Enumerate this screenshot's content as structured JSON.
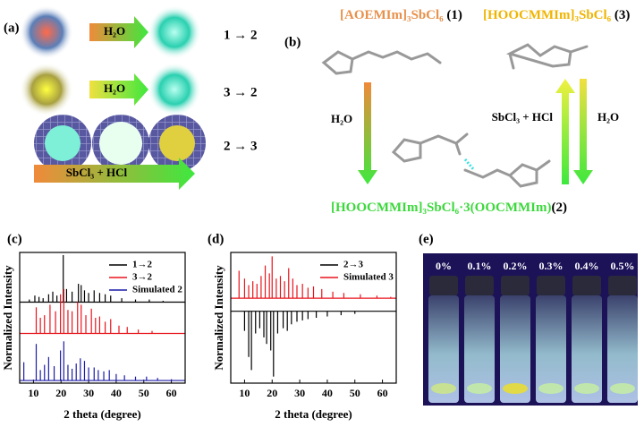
{
  "panel_a": {
    "label": "(a)",
    "rows": [
      {
        "reagent": "H₂O",
        "transition": "1 → 2"
      },
      {
        "reagent": "H₂O",
        "transition": "3 → 2"
      },
      {
        "reagent": "SbCl₃ + HCl",
        "transition": "2 → 3"
      }
    ]
  },
  "panel_b": {
    "label": "(b)",
    "compound_1": {
      "formula": "[AOEMIm]₃SbCl₆",
      "number": " (1)"
    },
    "compound_3": {
      "formula": "[HOOCMMIm]₃SbCl₆",
      "number": " (3)"
    },
    "compound_2": {
      "formula": "[HOOCMMIm]₃SbCl₆·3(OOCMMIm)",
      "number": "(2)"
    },
    "reagent_left": "H₂O",
    "reagent_up": "SbCl₃ + HCl",
    "reagent_down": "H₂O"
  },
  "chart_data": [
    {
      "type": "stick",
      "panel_label": "(c)",
      "xlabel": "2 theta (degree)",
      "ylabel": "Normalized Intensity",
      "xlim": [
        5,
        65
      ],
      "xticks": [
        10,
        20,
        30,
        40,
        50,
        60
      ],
      "ylim": [
        0,
        1
      ],
      "legend": "upper right",
      "series": [
        {
          "name": "1→2",
          "color": "#000000",
          "baseline": 0.62,
          "x": [
            8.5,
            10.5,
            12,
            13.5,
            15.5,
            17,
            18.5,
            20.8,
            22,
            24,
            26.3,
            27.3,
            28.5,
            30,
            32,
            34,
            36,
            38,
            42,
            47,
            52,
            57
          ],
          "values": [
            0.64,
            0.67,
            0.66,
            0.65,
            0.68,
            0.7,
            0.67,
            0.98,
            0.72,
            0.7,
            0.76,
            0.75,
            0.71,
            0.69,
            0.71,
            0.69,
            0.68,
            0.67,
            0.65,
            0.64,
            0.64,
            0.63
          ]
        },
        {
          "name": "3→2",
          "color": "#e8141c",
          "baseline": 0.38,
          "x": [
            11,
            12.5,
            14,
            16,
            18,
            19.8,
            21,
            22.5,
            24,
            26,
            27.3,
            29,
            31,
            32.5,
            34,
            36,
            38,
            41,
            44,
            48,
            53
          ],
          "values": [
            0.58,
            0.5,
            0.52,
            0.6,
            0.55,
            0.68,
            0.72,
            0.56,
            0.55,
            0.62,
            0.6,
            0.52,
            0.57,
            0.5,
            0.51,
            0.47,
            0.49,
            0.44,
            0.43,
            0.41,
            0.4
          ]
        },
        {
          "name": "Simulated 2",
          "color": "#1c1ca8",
          "baseline": 0.02,
          "x": [
            6.5,
            11,
            12.5,
            14,
            15.5,
            17.5,
            19.8,
            21,
            22.5,
            24,
            25.5,
            27,
            28.5,
            30,
            32,
            33.5,
            35.5,
            37.5,
            40,
            43,
            47,
            51,
            55,
            60
          ],
          "values": [
            0.16,
            0.3,
            0.1,
            0.14,
            0.2,
            0.13,
            0.25,
            0.32,
            0.14,
            0.11,
            0.15,
            0.19,
            0.17,
            0.12,
            0.12,
            0.1,
            0.09,
            0.1,
            0.07,
            0.06,
            0.05,
            0.05,
            0.04,
            0.03
          ]
        }
      ]
    },
    {
      "type": "stick",
      "panel_label": "(d)",
      "xlabel": "2 theta (degree)",
      "ylabel": "Normalized Intensity",
      "xlim": [
        5,
        65
      ],
      "xticks": [
        10,
        20,
        30,
        40,
        50,
        60
      ],
      "ylim": [
        0,
        1
      ],
      "legend": "upper right",
      "series": [
        {
          "name": "2→3",
          "color": "#000000",
          "baseline": 0.55,
          "x": [
            10,
            11.5,
            12.5,
            14,
            15.5,
            17,
            18,
            19.5,
            20.5,
            22,
            24,
            25.5,
            27,
            29,
            31,
            33,
            36,
            40,
            45,
            50
          ],
          "values": [
            0.4,
            0.2,
            0.1,
            0.38,
            0.42,
            0.35,
            0.3,
            0.25,
            0.05,
            0.38,
            0.42,
            0.4,
            0.45,
            0.47,
            0.48,
            0.49,
            0.5,
            0.51,
            0.52,
            0.53
          ]
        },
        {
          "name": "Simulated 3",
          "color": "#e8141c",
          "baseline": 0.65,
          "x": [
            8,
            10,
            11.5,
            13,
            14.5,
            16,
            17.5,
            19,
            20,
            21.5,
            23,
            24.5,
            26,
            27.5,
            29,
            31,
            33,
            35,
            38,
            42,
            46,
            52,
            58,
            63
          ],
          "values": [
            0.86,
            0.8,
            0.75,
            0.78,
            0.76,
            0.82,
            0.9,
            0.84,
            0.97,
            0.8,
            0.82,
            0.78,
            0.88,
            0.8,
            0.75,
            0.76,
            0.73,
            0.74,
            0.72,
            0.7,
            0.69,
            0.68,
            0.67,
            0.66
          ]
        }
      ]
    }
  ],
  "panel_e": {
    "label": "(e)",
    "concentrations": [
      "0%",
      "0.1%",
      "0.2%",
      "0.3%",
      "0.4%",
      "0.5%"
    ]
  }
}
